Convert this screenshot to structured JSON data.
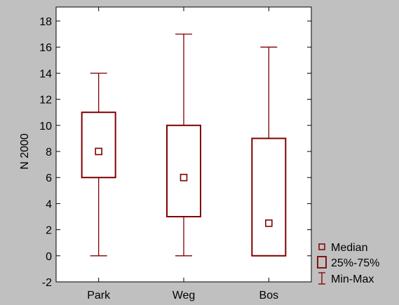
{
  "chart_data": {
    "type": "boxplot",
    "title": "",
    "xlabel": "",
    "ylabel": "N 2000",
    "ylim": [
      -2,
      18
    ],
    "yticks": [
      -2,
      0,
      2,
      4,
      6,
      8,
      10,
      12,
      14,
      16,
      18
    ],
    "grid": false,
    "legend_position": "bottom-right outside",
    "categories": [
      "Park",
      "Weg",
      "Bos"
    ],
    "series": [
      {
        "category": "Park",
        "min": 0,
        "q1": 6,
        "median": 8,
        "q3": 11,
        "max": 14
      },
      {
        "category": "Weg",
        "min": 0,
        "q1": 3,
        "median": 6,
        "q3": 10,
        "max": 17
      },
      {
        "category": "Bos",
        "min": 0,
        "q1": 0,
        "median": 2.5,
        "q3": 9,
        "max": 16
      }
    ],
    "legend": [
      {
        "symbol": "median-marker",
        "label": "Median"
      },
      {
        "symbol": "box",
        "label": "25%-75%"
      },
      {
        "symbol": "whisker",
        "label": "Min-Max"
      }
    ],
    "colors": {
      "series": "#800000",
      "background": "#c0c0c0",
      "plot_area": "#ffffff"
    }
  }
}
